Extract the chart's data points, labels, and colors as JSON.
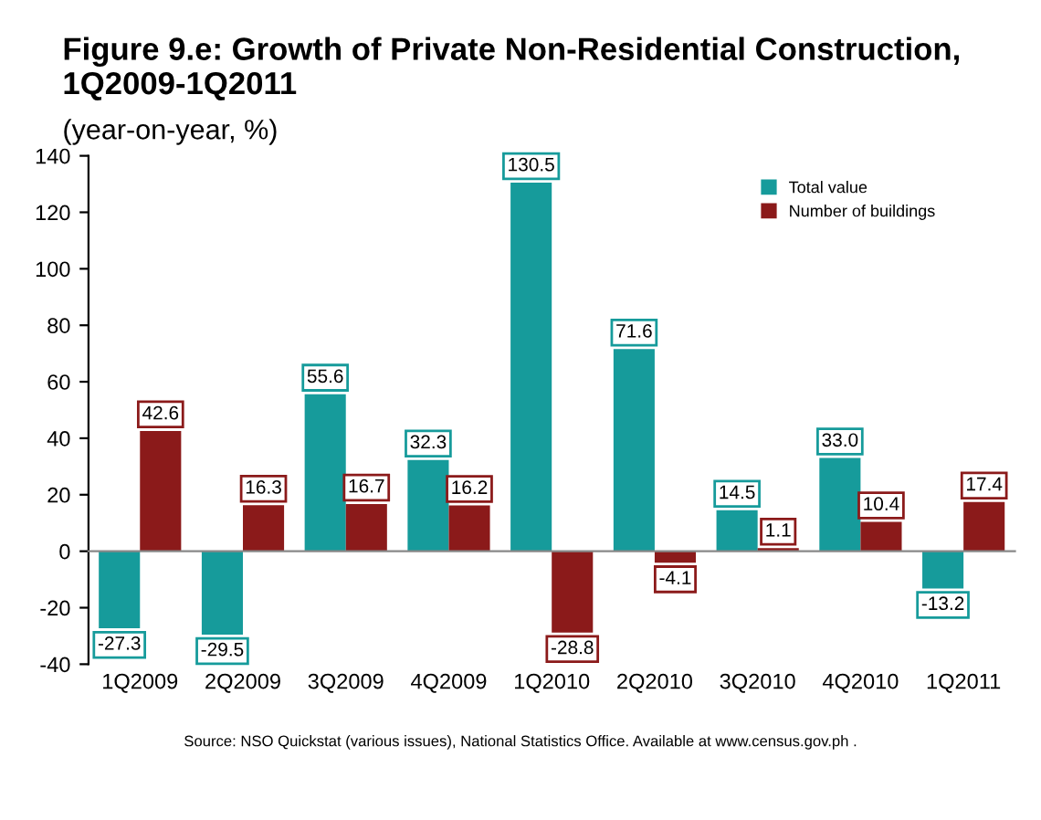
{
  "chart_data": {
    "type": "bar",
    "title": "Figure 9.e: Growth of Private Non-Residential Construction, 1Q2009-1Q2011",
    "subtitle": "(year-on-year, %)",
    "categories": [
      "1Q2009",
      "2Q2009",
      "3Q2009",
      "4Q2009",
      "1Q2010",
      "2Q2010",
      "3Q2010",
      "4Q2010",
      "1Q2011"
    ],
    "series": [
      {
        "name": "Total value",
        "color": "#169b9b",
        "values": [
          -27.3,
          -29.5,
          55.6,
          32.3,
          130.5,
          71.6,
          14.5,
          33.0,
          -13.2
        ]
      },
      {
        "name": "Number of buildings",
        "color": "#8b1a1a",
        "values": [
          42.6,
          16.3,
          16.7,
          16.2,
          -28.8,
          -4.1,
          1.1,
          10.4,
          17.4
        ]
      }
    ],
    "value_labels": [
      [
        "-27.3",
        "-29.5",
        "55.6",
        "32.3",
        "130.5",
        "71.6",
        "14.5",
        "33.0",
        "-13.2"
      ],
      [
        "42.6",
        "16.3",
        "16.7",
        "16.2",
        "-28.8",
        "-4.1",
        "1.1",
        "10.4",
        "17.4"
      ]
    ],
    "ylim": [
      -40,
      140
    ],
    "yticks": [
      -40,
      -20,
      0,
      20,
      40,
      60,
      80,
      100,
      120,
      140
    ],
    "legend": "top right",
    "annotations": [
      "Source: NSO Quickstat (various issues), National Statistics Office. Available at www.census.gov.ph ."
    ]
  }
}
